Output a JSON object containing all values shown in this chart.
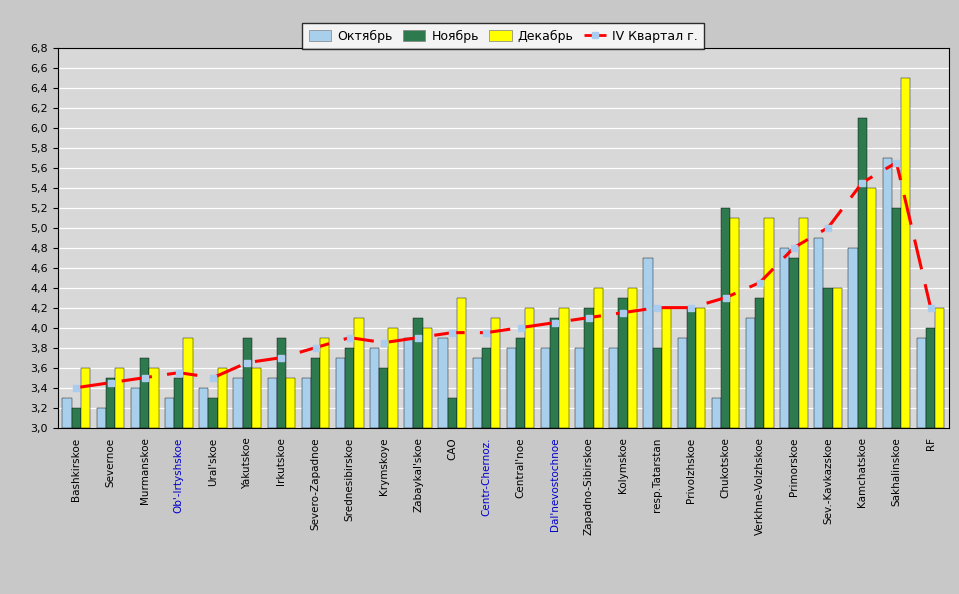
{
  "categories": [
    "Bashkirskoe",
    "Severnoe",
    "Murmanskoe",
    "Ob'-Irtyshskoe",
    "Ural'skoe",
    "Yakutskoe",
    "Irkutskoe",
    "Severo-Zapadnoe",
    "Srednesibirskoe",
    "Krymskoye",
    "Zabaykal'skoe",
    "CAO",
    "Centr-Chernoz.",
    "Central'noe",
    "Dal'nevostochnoe",
    "Zapadno-Sibirskoe",
    "Kolymskoe",
    "resp.Tatarstan",
    "Privolzhskoe",
    "Chukotskoe",
    "Verkhne-Volzhskoe",
    "Primorskoe",
    "Sev.-Kavkazskoe",
    "Kamchatskoe",
    "Sakhalinskoe",
    "RF"
  ],
  "october": [
    3.3,
    3.2,
    3.4,
    3.3,
    3.4,
    3.5,
    3.5,
    3.5,
    3.7,
    3.8,
    3.9,
    3.9,
    3.7,
    3.8,
    3.8,
    3.8,
    3.8,
    4.7,
    3.9,
    3.3,
    4.1,
    4.8,
    4.9,
    4.8,
    5.7,
    3.9
  ],
  "november": [
    3.2,
    3.5,
    3.7,
    3.5,
    3.3,
    3.9,
    3.9,
    3.7,
    3.8,
    3.6,
    4.1,
    3.3,
    3.8,
    3.9,
    4.1,
    4.2,
    4.3,
    3.8,
    4.2,
    5.2,
    4.3,
    4.7,
    4.4,
    6.1,
    5.2,
    4.0
  ],
  "december": [
    3.6,
    3.6,
    3.6,
    3.9,
    3.6,
    3.6,
    3.5,
    3.9,
    4.1,
    4.0,
    4.0,
    4.3,
    4.1,
    4.2,
    4.2,
    4.4,
    4.4,
    4.2,
    4.2,
    5.1,
    5.1,
    5.1,
    4.4,
    5.4,
    6.5,
    4.2
  ],
  "line": [
    3.4,
    3.45,
    3.5,
    3.55,
    3.5,
    3.65,
    3.7,
    3.8,
    3.9,
    3.85,
    3.9,
    3.95,
    3.95,
    4.0,
    4.05,
    4.1,
    4.15,
    4.2,
    4.2,
    4.3,
    4.45,
    4.8,
    5.0,
    5.45,
    5.65,
    4.2
  ],
  "bar_color_oct": "#a8d0ec",
  "bar_color_nov": "#2e7a4f",
  "bar_color_dec": "#ffff00",
  "line_color": "#ff0000",
  "fig_bg_color": "#c8c8c8",
  "plot_bg_color": "#d8d8d8",
  "ylim_min": 3.0,
  "ylim_max": 6.8,
  "ytick_step": 0.2,
  "bar_bottom": 3.0,
  "legend_oct": "Октябрь",
  "legend_nov": "Ноябрь",
  "legend_dec": "Декабрь",
  "legend_line": "IV Квартал г.",
  "colored_labels": {
    "Ob'-Irtyshskoe": "#0000cc",
    "Centr-Chernoz.": "#0000cc",
    "Dal'nevostochnoe": "#0000cc"
  }
}
